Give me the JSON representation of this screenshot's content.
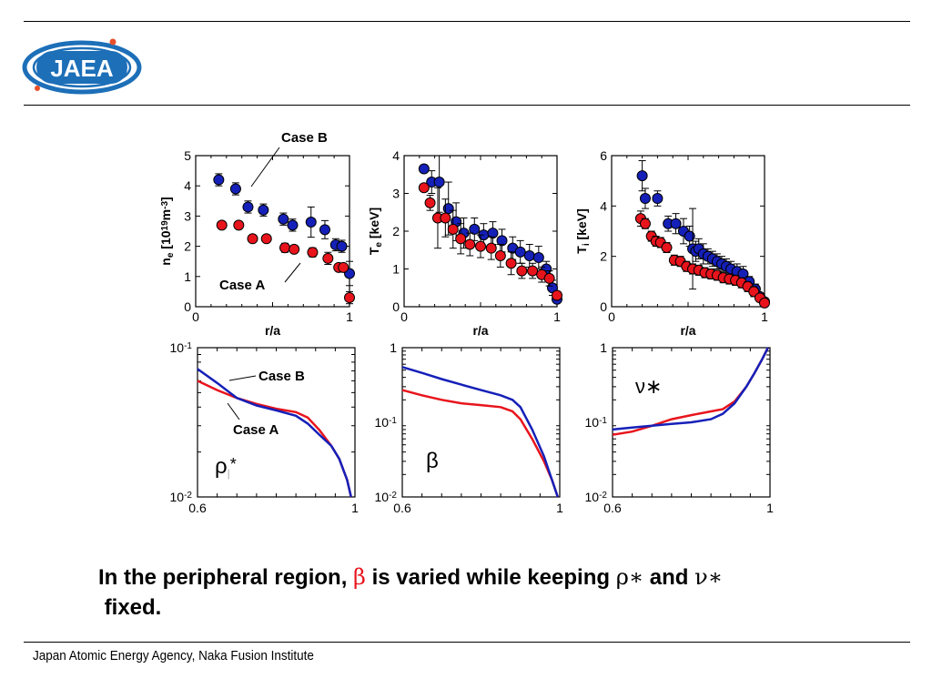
{
  "logo": {
    "text": "JAEA",
    "color": "#1d6fb8",
    "accent": "#e8502a"
  },
  "caption": {
    "part1": "In the peripheral region, ",
    "beta": "β",
    "part2": " is varied while keeping ",
    "rho": "ρ∗",
    "part3": " and ",
    "nu": "ν∗",
    "part4": " fixed."
  },
  "footer": {
    "text": "Japan Atomic Energy Agency, Naka Fusion Institute"
  },
  "colors": {
    "caseA": "#e8141c",
    "caseB": "#1520b8"
  },
  "chart_data": [
    {
      "type": "scatter",
      "id": "ne",
      "ylabel_main": "n",
      "ylabel_sub": "e",
      "ylabel_rest1": " [10",
      "ylabel_sup1": "19",
      "ylabel_rest2": "m",
      "ylabel_sup2": "-3",
      "ylabel_rest3": "]",
      "xlabel": "r/a",
      "xlim": [
        0,
        1
      ],
      "ylim": [
        0,
        5
      ],
      "xticks": [
        "0",
        "1"
      ],
      "yticks": [
        "0",
        "1",
        "2",
        "3",
        "4",
        "5"
      ],
      "annotations": [
        "Case B",
        "Case A"
      ],
      "series": [
        {
          "name": "Case B",
          "x": [
            0.15,
            0.26,
            0.34,
            0.44,
            0.57,
            0.63,
            0.75,
            0.84,
            0.91,
            0.95,
            1.0
          ],
          "y": [
            4.2,
            3.9,
            3.3,
            3.2,
            2.9,
            2.7,
            2.8,
            2.55,
            2.05,
            2.0,
            1.1
          ],
          "err": [
            0.2,
            0.2,
            0.2,
            0.2,
            0.2,
            0.2,
            0.5,
            0.3,
            0.2,
            0.2,
            0.4
          ]
        },
        {
          "name": "Case A",
          "x": [
            0.17,
            0.28,
            0.37,
            0.46,
            0.58,
            0.64,
            0.76,
            0.86,
            0.93,
            0.96,
            1.0
          ],
          "y": [
            2.7,
            2.7,
            2.25,
            2.25,
            1.95,
            1.9,
            1.8,
            1.6,
            1.3,
            1.3,
            0.3
          ],
          "err": [
            0.1,
            0.1,
            0.1,
            0.1,
            0.15,
            0.1,
            0.15,
            0.2,
            0.1,
            0.1,
            0.2
          ]
        }
      ]
    },
    {
      "type": "scatter",
      "id": "te",
      "ylabel_main": "T",
      "ylabel_sub": "e",
      "ylabel_rest1": " [keV]",
      "xlabel": "r/a",
      "xlim": [
        0,
        1
      ],
      "ylim": [
        0,
        4
      ],
      "xticks": [
        "0",
        "1"
      ],
      "yticks": [
        "0",
        "1",
        "2",
        "3",
        "4"
      ],
      "series": [
        {
          "name": "Case B",
          "x": [
            0.13,
            0.18,
            0.23,
            0.29,
            0.34,
            0.39,
            0.46,
            0.52,
            0.58,
            0.64,
            0.71,
            0.76,
            0.82,
            0.88,
            0.93,
            0.97,
            1.0
          ],
          "y": [
            3.65,
            3.3,
            3.3,
            2.6,
            2.25,
            1.95,
            2.05,
            1.9,
            1.95,
            1.75,
            1.55,
            1.45,
            1.35,
            1.3,
            1.0,
            0.5,
            0.2
          ],
          "err": [
            0.1,
            0.3,
            0.8,
            0.7,
            0.5,
            0.4,
            0.3,
            0.3,
            0.3,
            0.3,
            0.3,
            0.3,
            0.3,
            0.3,
            0.2,
            0.2,
            0.1
          ]
        },
        {
          "name": "Case A",
          "x": [
            0.13,
            0.17,
            0.22,
            0.27,
            0.32,
            0.37,
            0.43,
            0.5,
            0.57,
            0.63,
            0.7,
            0.77,
            0.84,
            0.9,
            0.95,
            1.0
          ],
          "y": [
            3.15,
            2.75,
            2.35,
            2.35,
            2.05,
            1.8,
            1.65,
            1.6,
            1.55,
            1.35,
            1.15,
            0.95,
            0.95,
            0.85,
            0.75,
            0.3
          ],
          "err": [
            0.1,
            0.2,
            0.8,
            0.5,
            0.5,
            0.4,
            0.3,
            0.3,
            0.3,
            0.3,
            0.3,
            0.2,
            0.2,
            0.2,
            0.2,
            0.1
          ]
        }
      ]
    },
    {
      "type": "scatter",
      "id": "ti",
      "ylabel_main": "T",
      "ylabel_sub": "i",
      "ylabel_rest1": " [keV]",
      "xlabel": "r/a",
      "xlim": [
        0,
        1
      ],
      "ylim": [
        0,
        6
      ],
      "xticks": [
        "0",
        "1"
      ],
      "yticks": [
        "0",
        "2",
        "4",
        "6"
      ],
      "series": [
        {
          "name": "Case B",
          "x": [
            0.2,
            0.22,
            0.3,
            0.37,
            0.42,
            0.47,
            0.51,
            0.53,
            0.55,
            0.57,
            0.6,
            0.63,
            0.66,
            0.69,
            0.72,
            0.75,
            0.78,
            0.82,
            0.86,
            0.9,
            0.94,
            0.97,
            1.0
          ],
          "y": [
            5.2,
            4.3,
            4.3,
            3.3,
            3.3,
            3.0,
            2.8,
            2.3,
            2.2,
            2.3,
            2.1,
            2.0,
            1.9,
            1.8,
            1.7,
            1.6,
            1.5,
            1.4,
            1.3,
            1.0,
            0.7,
            0.4,
            0.2
          ],
          "err": [
            0.6,
            0.4,
            0.3,
            0.3,
            0.4,
            0.5,
            0.4,
            1.6,
            0.4,
            0.4,
            0.4,
            0.3,
            0.3,
            0.3,
            0.3,
            0.3,
            0.3,
            0.3,
            0.3,
            0.2,
            0.2,
            0.1,
            0.1
          ]
        },
        {
          "name": "Case A",
          "x": [
            0.19,
            0.22,
            0.26,
            0.29,
            0.32,
            0.36,
            0.41,
            0.45,
            0.49,
            0.53,
            0.57,
            0.61,
            0.65,
            0.69,
            0.73,
            0.77,
            0.81,
            0.85,
            0.89,
            0.93,
            0.97,
            1.0
          ],
          "y": [
            3.5,
            3.3,
            2.8,
            2.6,
            2.55,
            2.35,
            1.85,
            1.8,
            1.6,
            1.5,
            1.45,
            1.35,
            1.3,
            1.25,
            1.15,
            1.1,
            1.05,
            0.95,
            0.8,
            0.6,
            0.35,
            0.15
          ],
          "err": [
            0.3,
            0.2,
            0.2,
            0.2,
            0.2,
            0.2,
            0.2,
            0.2,
            0.2,
            0.2,
            0.2,
            0.2,
            0.2,
            0.2,
            0.2,
            0.2,
            0.2,
            0.2,
            0.2,
            0.2,
            0.1,
            0.1
          ]
        }
      ]
    },
    {
      "type": "line",
      "id": "rho",
      "log_y": true,
      "label": "ρ",
      "label_sub": "|",
      "label_star": "*",
      "xlim": [
        0.6,
        1
      ],
      "ylim": [
        0.01,
        0.1
      ],
      "xticks": [
        "0.6",
        "1"
      ],
      "yticks_base": [
        "10",
        "10"
      ],
      "yticks_exp": [
        "-2",
        "-1"
      ],
      "annotations": [
        "Case B",
        "Case A"
      ],
      "series": [
        {
          "name": "Case B",
          "x": [
            0.6,
            0.65,
            0.7,
            0.75,
            0.8,
            0.85,
            0.88,
            0.91,
            0.94,
            0.96,
            0.98,
            0.99
          ],
          "y": [
            0.072,
            0.058,
            0.046,
            0.041,
            0.038,
            0.035,
            0.031,
            0.026,
            0.022,
            0.018,
            0.013,
            0.01
          ]
        },
        {
          "name": "Case A",
          "x": [
            0.6,
            0.65,
            0.7,
            0.75,
            0.8,
            0.85,
            0.88,
            0.91,
            0.94,
            0.96,
            0.98,
            0.99
          ],
          "y": [
            0.06,
            0.052,
            0.046,
            0.042,
            0.039,
            0.037,
            0.034,
            0.028,
            0.022,
            0.018,
            0.013,
            0.01
          ]
        }
      ]
    },
    {
      "type": "line",
      "id": "beta",
      "log_y": true,
      "label": "β",
      "xlim": [
        0.6,
        1
      ],
      "ylim": [
        0.01,
        1
      ],
      "xticks": [
        "0.6",
        "1"
      ],
      "yticks_base": [
        "10",
        "10",
        "1"
      ],
      "yticks_exp": [
        "-2",
        "-1",
        ""
      ],
      "series": [
        {
          "name": "Case B",
          "x": [
            0.6,
            0.65,
            0.7,
            0.75,
            0.8,
            0.85,
            0.88,
            0.9,
            0.93,
            0.96,
            0.98,
            0.995
          ],
          "y": [
            0.55,
            0.46,
            0.38,
            0.32,
            0.27,
            0.23,
            0.2,
            0.16,
            0.08,
            0.035,
            0.017,
            0.01
          ]
        },
        {
          "name": "Case A",
          "x": [
            0.6,
            0.65,
            0.7,
            0.75,
            0.8,
            0.85,
            0.88,
            0.9,
            0.93,
            0.96,
            0.98,
            0.995
          ],
          "y": [
            0.27,
            0.23,
            0.2,
            0.18,
            0.17,
            0.16,
            0.14,
            0.11,
            0.06,
            0.03,
            0.017,
            0.01
          ]
        }
      ]
    },
    {
      "type": "line",
      "id": "nu",
      "log_y": true,
      "label": "ν∗",
      "xlim": [
        0.6,
        1
      ],
      "ylim": [
        0.01,
        1
      ],
      "xticks": [
        "0.6",
        "1"
      ],
      "yticks_base": [
        "10",
        "10",
        "1"
      ],
      "yticks_exp": [
        "-2",
        "-1",
        ""
      ],
      "series": [
        {
          "name": "Case B",
          "x": [
            0.6,
            0.65,
            0.7,
            0.75,
            0.8,
            0.85,
            0.88,
            0.91,
            0.94,
            0.96,
            0.98,
            0.995
          ],
          "y": [
            0.08,
            0.085,
            0.09,
            0.095,
            0.1,
            0.11,
            0.13,
            0.18,
            0.3,
            0.45,
            0.7,
            1.0
          ]
        },
        {
          "name": "Case A",
          "x": [
            0.6,
            0.65,
            0.7,
            0.75,
            0.8,
            0.85,
            0.88,
            0.91,
            0.94,
            0.96,
            0.98,
            0.995
          ],
          "y": [
            0.068,
            0.075,
            0.09,
            0.11,
            0.125,
            0.14,
            0.15,
            0.19,
            0.3,
            0.45,
            0.7,
            1.0
          ]
        }
      ]
    }
  ]
}
